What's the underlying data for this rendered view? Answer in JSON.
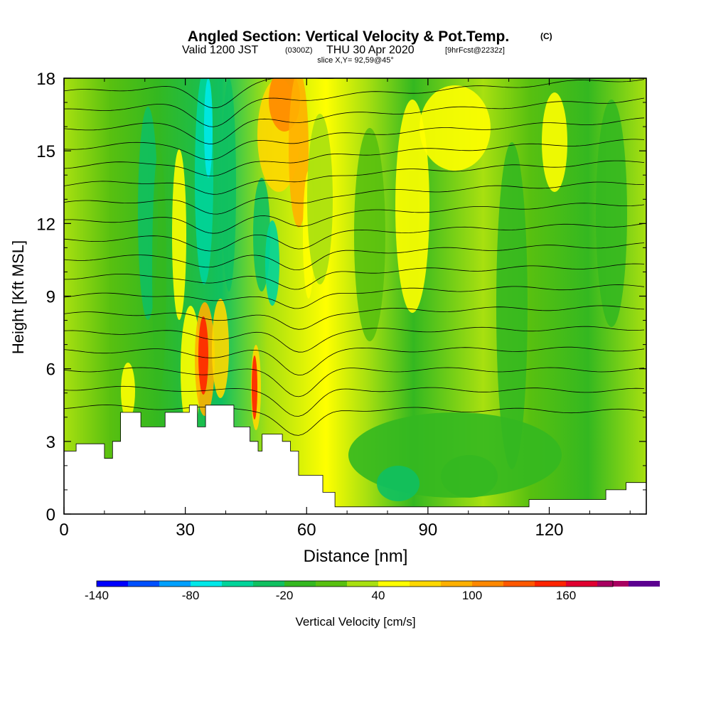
{
  "chart_data": {
    "type": "heatmap",
    "title": {
      "main": "Angled Section: Vertical Velocity & Pot.Temp.",
      "units": "(C)",
      "line2_a": "Valid 1200 JST",
      "line2_b": "(0300Z)",
      "line2_c": "THU 30 Apr 2020",
      "line2_d": "[9hrFcst@2232z]",
      "line3": "slice X,Y= 92,59@45°"
    },
    "xlabel": "Distance [nm]",
    "ylabel": "Height [Kft MSL]",
    "xlim": [
      0,
      144
    ],
    "ylim": [
      0,
      18
    ],
    "xticks": [
      {
        "value": 0,
        "label": "0"
      },
      {
        "value": 30,
        "label": "30"
      },
      {
        "value": 60,
        "label": "60"
      },
      {
        "value": 90,
        "label": "90"
      },
      {
        "value": 120,
        "label": "120"
      }
    ],
    "yticks": [
      {
        "value": 0,
        "label": "0"
      },
      {
        "value": 3,
        "label": "3"
      },
      {
        "value": 6,
        "label": "6"
      },
      {
        "value": 9,
        "label": "9"
      },
      {
        "value": 12,
        "label": "12"
      },
      {
        "value": 15,
        "label": "15"
      },
      {
        "value": 18,
        "label": "18"
      }
    ],
    "colorbar": {
      "label": "Vertical Velocity [cm/s]",
      "min": -140,
      "max": 190,
      "step": 20,
      "colors": [
        "#0000ff",
        "#0050ff",
        "#00a0ff",
        "#00e8e8",
        "#00d49a",
        "#10c060",
        "#34b820",
        "#58c010",
        "#a8e010",
        "#ffff00",
        "#ffd800",
        "#ffb000",
        "#ff8800",
        "#ff5800",
        "#ff2400",
        "#e00030",
        "#a80060",
        "#5c0090"
      ],
      "tick_labels": [
        {
          "value": -140,
          "label": "-140"
        },
        {
          "value": -80,
          "label": "-80"
        },
        {
          "value": -20,
          "label": "-20"
        },
        {
          "value": 40,
          "label": "40"
        },
        {
          "value": 100,
          "label": "100"
        },
        {
          "value": 160,
          "label": "160"
        }
      ]
    },
    "terrain_kft": [
      [
        0,
        2.6
      ],
      [
        3,
        2.9
      ],
      [
        8,
        2.9
      ],
      [
        10,
        2.3
      ],
      [
        12,
        3.0
      ],
      [
        14,
        4.2
      ],
      [
        17,
        4.2
      ],
      [
        19,
        3.6
      ],
      [
        22,
        3.6
      ],
      [
        25,
        4.2
      ],
      [
        30,
        4.2
      ],
      [
        31,
        4.5
      ],
      [
        33,
        3.6
      ],
      [
        35,
        4.5
      ],
      [
        40,
        4.5
      ],
      [
        42,
        3.6
      ],
      [
        46,
        3.0
      ],
      [
        48,
        2.6
      ],
      [
        49,
        3.3
      ],
      [
        53,
        3.3
      ],
      [
        54,
        3.0
      ],
      [
        56,
        2.6
      ],
      [
        58,
        1.6
      ],
      [
        62,
        1.6
      ],
      [
        64,
        0.9
      ],
      [
        67,
        0.3
      ],
      [
        113,
        0.3
      ],
      [
        115,
        0.6
      ],
      [
        128,
        0.6
      ],
      [
        134,
        1.0
      ],
      [
        139,
        1.3
      ],
      [
        144,
        1.3
      ]
    ]
  }
}
